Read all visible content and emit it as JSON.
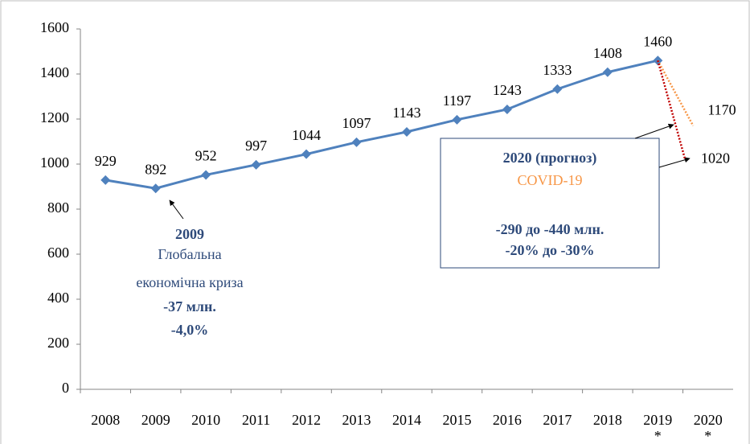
{
  "chart_data": {
    "type": "line",
    "categories": [
      "2008",
      "2009",
      "2010",
      "2011",
      "2012",
      "2013",
      "2014",
      "2015",
      "2016",
      "2017",
      "2018",
      "2019\n*",
      "2020\n*"
    ],
    "series": [
      {
        "color": "#4f81bd",
        "values": [
          929,
          892,
          952,
          997,
          1044,
          1097,
          1143,
          1197,
          1243,
          1333,
          1408,
          1460,
          null
        ]
      }
    ],
    "forecast": {
      "values": [
        1170,
        1020
      ],
      "colors": [
        "#f79646",
        "#c00000"
      ]
    },
    "ylim": [
      0,
      1600
    ],
    "yticks": [
      0,
      200,
      400,
      600,
      800,
      1000,
      1200,
      1400,
      1600
    ],
    "annotations": {
      "crisis": [
        "2009",
        "Глобальна",
        "економічна криза",
        "-37 млн.",
        "-4,0%"
      ],
      "covid": [
        "2020 (прогноз)",
        "COVID-19",
        "-290 до -440 млн.",
        "-20% до -30%"
      ]
    }
  }
}
